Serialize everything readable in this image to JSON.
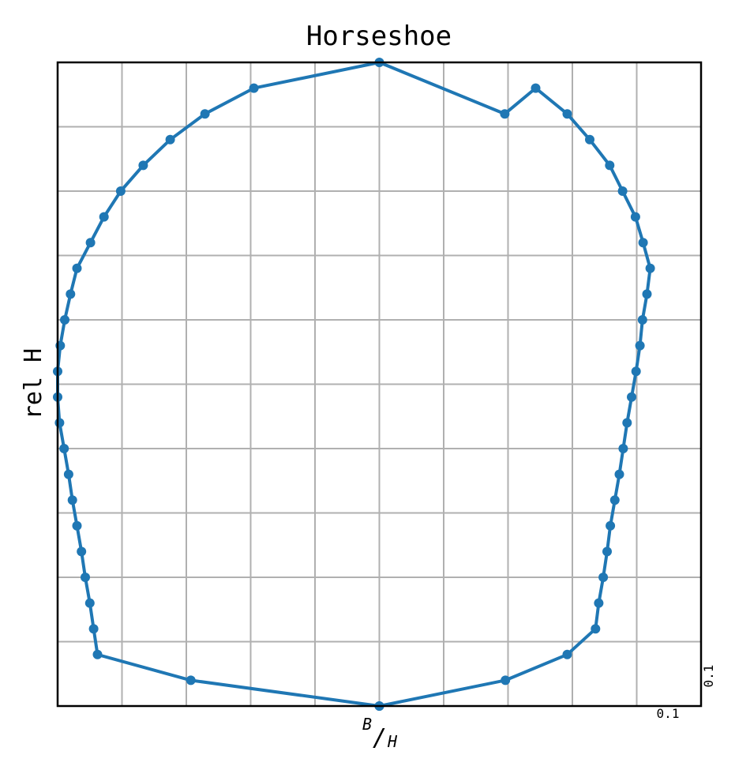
{
  "chart_data": {
    "type": "line",
    "title": "Horseshoe",
    "ylabel": "rel H",
    "xlabel": {
      "numerator": "B",
      "slash": "/",
      "denominator": "H"
    },
    "tick_notes": {
      "x": "0.1",
      "y": "0.1"
    },
    "xlim": [
      -0.5,
      0.5
    ],
    "ylim": [
      0,
      1
    ],
    "grid": true,
    "grid_step": 0.1,
    "color": "#1f77b4",
    "series": [
      {
        "x": [
          0,
          0.196,
          0.292,
          0.336,
          0.341,
          0.348,
          0.354,
          0.359,
          0.366,
          0.373,
          0.379,
          0.385,
          0.392,
          0.399,
          0.405,
          0.409,
          0.416,
          0.421,
          0.41,
          0.398,
          0.378,
          0.358,
          0.327,
          0.292,
          0.243,
          0.195,
          0,
          -0.195,
          -0.271,
          -0.325,
          -0.367,
          -0.402,
          -0.428,
          -0.449,
          -0.47,
          -0.48,
          -0.489,
          -0.496,
          -0.5,
          -0.5,
          -0.497,
          -0.49,
          -0.483,
          -0.477,
          -0.47,
          -0.463,
          -0.457,
          -0.45,
          -0.444,
          -0.438,
          -0.293,
          0
        ],
        "y": [
          0,
          0.04,
          0.08,
          0.12,
          0.16,
          0.2,
          0.24,
          0.28,
          0.32,
          0.36,
          0.4,
          0.44,
          0.48,
          0.52,
          0.56,
          0.6,
          0.64,
          0.68,
          0.72,
          0.76,
          0.8,
          0.84,
          0.88,
          0.92,
          0.96,
          0.92,
          1.0,
          0.96,
          0.92,
          0.88,
          0.84,
          0.8,
          0.76,
          0.72,
          0.68,
          0.64,
          0.6,
          0.56,
          0.52,
          0.48,
          0.44,
          0.4,
          0.36,
          0.32,
          0.28,
          0.24,
          0.2,
          0.16,
          0.12,
          0.08,
          0.04,
          0
        ]
      }
    ]
  }
}
